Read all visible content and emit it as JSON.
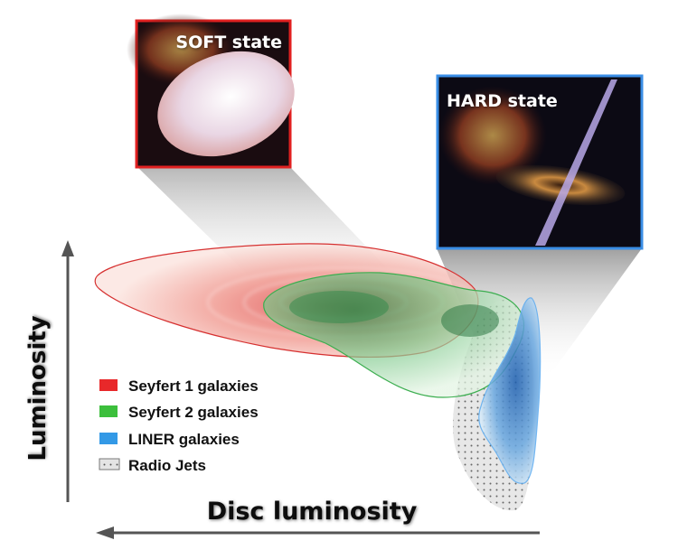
{
  "panels": {
    "soft": {
      "title": "SOFT state",
      "border_color": "#e02020"
    },
    "hard": {
      "title": "HARD state",
      "border_color": "#3a8ee6"
    }
  },
  "axes": {
    "y_label": "Luminosity",
    "x_label": "Disc luminosity",
    "x_direction": "right-to-left (increasing leftward)"
  },
  "legend": [
    {
      "label": "Seyfert 1 galaxies",
      "color": "#e8282a"
    },
    {
      "label": "Seyfert 2 galaxies",
      "color": "#3cbf3c"
    },
    {
      "label": "LINER galaxies",
      "color": "#3399e6"
    },
    {
      "label": "Radio Jets",
      "color": "#cccccc",
      "pattern": "dotted"
    }
  ]
}
